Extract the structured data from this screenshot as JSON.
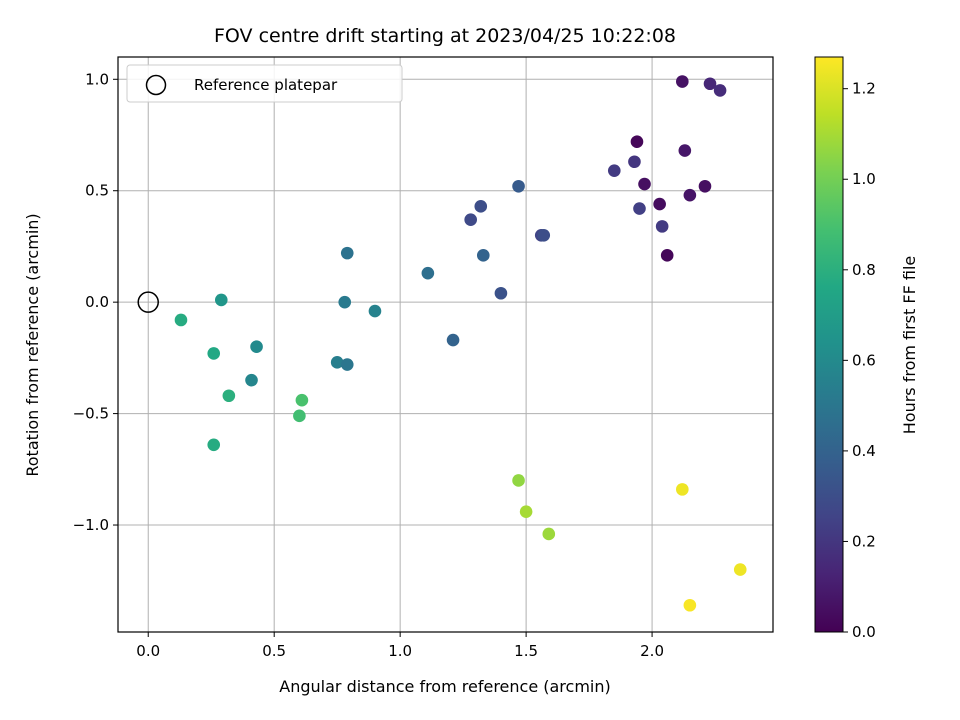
{
  "chart_data": {
    "type": "scatter",
    "title": "FOV centre drift starting at 2023/04/25 10:22:08",
    "xlabel": "Angular distance from reference (arcmin)",
    "ylabel": "Rotation from reference (arcmin)",
    "xlim": [
      -0.12,
      2.48
    ],
    "ylim": [
      -1.48,
      1.1
    ],
    "xticks": [
      0.0,
      0.5,
      1.0,
      1.5,
      2.0
    ],
    "xtick_labels": [
      "0.0",
      "0.5",
      "1.0",
      "1.5",
      "2.0"
    ],
    "yticks": [
      -1.0,
      -0.5,
      0.0,
      0.5,
      1.0
    ],
    "ytick_labels": [
      "−1.0",
      "−0.5",
      "0.0",
      "0.5",
      "1.0"
    ],
    "grid": true,
    "legend": {
      "position": "upper-left",
      "entries": [
        "Reference platepar"
      ]
    },
    "reference_point": {
      "x": 0.0,
      "y": 0.0
    },
    "colorbar": {
      "label": "Hours from first FF file",
      "colormap": "viridis",
      "range": [
        0.0,
        1.27
      ],
      "ticks": [
        0.0,
        0.2,
        0.4,
        0.6,
        0.8,
        1.0,
        1.2
      ],
      "tick_labels": [
        "0.0",
        "0.2",
        "0.4",
        "0.6",
        "0.8",
        "1.0",
        "1.2"
      ]
    },
    "points": [
      {
        "x": 2.12,
        "y": 0.99,
        "c": 0.06
      },
      {
        "x": 2.23,
        "y": 0.98,
        "c": 0.14
      },
      {
        "x": 2.27,
        "y": 0.95,
        "c": 0.16
      },
      {
        "x": 1.94,
        "y": 0.72,
        "c": 0.02
      },
      {
        "x": 2.13,
        "y": 0.68,
        "c": 0.08
      },
      {
        "x": 1.93,
        "y": 0.63,
        "c": 0.2
      },
      {
        "x": 1.85,
        "y": 0.59,
        "c": 0.22
      },
      {
        "x": 1.97,
        "y": 0.53,
        "c": 0.05
      },
      {
        "x": 2.21,
        "y": 0.52,
        "c": 0.05
      },
      {
        "x": 2.15,
        "y": 0.48,
        "c": 0.07
      },
      {
        "x": 2.03,
        "y": 0.44,
        "c": 0.04
      },
      {
        "x": 1.95,
        "y": 0.42,
        "c": 0.24
      },
      {
        "x": 2.04,
        "y": 0.34,
        "c": 0.22
      },
      {
        "x": 2.06,
        "y": 0.21,
        "c": 0.02
      },
      {
        "x": 1.47,
        "y": 0.52,
        "c": 0.36
      },
      {
        "x": 1.32,
        "y": 0.43,
        "c": 0.3
      },
      {
        "x": 1.28,
        "y": 0.37,
        "c": 0.28
      },
      {
        "x": 1.56,
        "y": 0.3,
        "c": 0.26
      },
      {
        "x": 1.57,
        "y": 0.3,
        "c": 0.3
      },
      {
        "x": 1.33,
        "y": 0.21,
        "c": 0.4
      },
      {
        "x": 1.4,
        "y": 0.04,
        "c": 0.32
      },
      {
        "x": 1.11,
        "y": 0.13,
        "c": 0.46
      },
      {
        "x": 1.21,
        "y": -0.17,
        "c": 0.4
      },
      {
        "x": 0.79,
        "y": 0.22,
        "c": 0.48
      },
      {
        "x": 0.78,
        "y": 0.0,
        "c": 0.52
      },
      {
        "x": 0.9,
        "y": -0.04,
        "c": 0.56
      },
      {
        "x": 0.75,
        "y": -0.27,
        "c": 0.54
      },
      {
        "x": 0.79,
        "y": -0.28,
        "c": 0.5
      },
      {
        "x": 0.29,
        "y": 0.01,
        "c": 0.66
      },
      {
        "x": 0.43,
        "y": -0.2,
        "c": 0.6
      },
      {
        "x": 0.41,
        "y": -0.35,
        "c": 0.58
      },
      {
        "x": 0.13,
        "y": -0.08,
        "c": 0.78
      },
      {
        "x": 0.26,
        "y": -0.23,
        "c": 0.76
      },
      {
        "x": 0.32,
        "y": -0.42,
        "c": 0.8
      },
      {
        "x": 0.26,
        "y": -0.64,
        "c": 0.78
      },
      {
        "x": 0.61,
        "y": -0.44,
        "c": 0.9
      },
      {
        "x": 0.6,
        "y": -0.51,
        "c": 0.88
      },
      {
        "x": 1.47,
        "y": -0.8,
        "c": 1.06
      },
      {
        "x": 1.5,
        "y": -0.94,
        "c": 1.1
      },
      {
        "x": 1.59,
        "y": -1.04,
        "c": 1.08
      },
      {
        "x": 2.12,
        "y": -0.84,
        "c": 1.24
      },
      {
        "x": 2.35,
        "y": -1.2,
        "c": 1.24
      },
      {
        "x": 2.15,
        "y": -1.36,
        "c": 1.26
      }
    ]
  }
}
